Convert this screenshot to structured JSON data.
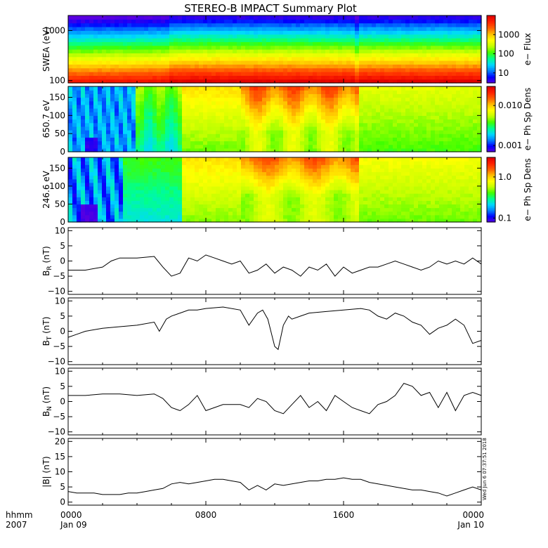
{
  "title": "STEREO-B IMPACT Summary Plot",
  "time_axis": {
    "unit_label": "hhmm",
    "year_label": "2007",
    "ticks": [
      {
        "hour": 0,
        "time": "0000",
        "date": "Jan 09"
      },
      {
        "hour": 8,
        "time": "0800",
        "date": ""
      },
      {
        "hour": 16,
        "time": "1600",
        "date": ""
      },
      {
        "hour": 24,
        "time": "0000",
        "date": "Jan 10"
      }
    ]
  },
  "stamp": "Wed Jun  6 07:37:51 2018",
  "colors": {
    "colormap": [
      "#5a00e0",
      "#0000ff",
      "#0080ff",
      "#00d8ff",
      "#00ff90",
      "#40ff00",
      "#c0ff00",
      "#ffff00",
      "#ffc000",
      "#ff6000",
      "#ff2000",
      "#e00000"
    ],
    "line": "#000000",
    "frame": "#000000"
  },
  "chart_data": [
    {
      "type": "heatmap",
      "name": "swea",
      "ylabel": "SWEA (eV)",
      "colorbar_label": "e− Flux",
      "yscale": "log",
      "ylim": [
        90,
        2000
      ],
      "yticks": [
        {
          "v": 100,
          "l": "100"
        },
        {
          "v": 1000,
          "l": "1000"
        }
      ],
      "colorbar_scale": "log",
      "colorbar_range": [
        3,
        10000
      ],
      "colorbar_ticks": [
        {
          "v": 10,
          "l": "10"
        },
        {
          "v": 100,
          "l": "100"
        },
        {
          "v": 1000,
          "l": "1000"
        }
      ]
    },
    {
      "type": "heatmap",
      "name": "pad650",
      "ylabel": "650.7 eV",
      "colorbar_label": "e− Ph Sp Dens",
      "yscale": "linear",
      "ylim": [
        0,
        180
      ],
      "yticks": [
        {
          "v": 0,
          "l": "0"
        },
        {
          "v": 50,
          "l": "50"
        },
        {
          "v": 100,
          "l": "100"
        },
        {
          "v": 150,
          "l": "150"
        }
      ],
      "colorbar_scale": "log",
      "colorbar_range": [
        0.0007,
        0.03
      ],
      "colorbar_ticks": [
        {
          "v": 0.001,
          "l": "0.001"
        },
        {
          "v": 0.01,
          "l": "0.010"
        }
      ]
    },
    {
      "type": "heatmap",
      "name": "pad246",
      "ylabel": "246.6 eV",
      "colorbar_label": "e− Ph Sp Dens",
      "yscale": "linear",
      "ylim": [
        0,
        180
      ],
      "yticks": [
        {
          "v": 0,
          "l": "0"
        },
        {
          "v": 50,
          "l": "50"
        },
        {
          "v": 100,
          "l": "100"
        },
        {
          "v": 150,
          "l": "150"
        }
      ],
      "colorbar_scale": "log",
      "colorbar_range": [
        0.08,
        3
      ],
      "colorbar_ticks": [
        {
          "v": 0.1,
          "l": "0.1"
        },
        {
          "v": 1,
          "l": "1.0"
        }
      ]
    },
    {
      "type": "line",
      "name": "br",
      "ylabel_main": "B",
      "ylabel_sub": "R",
      "ylabel_unit": " (nT)",
      "ylim": [
        -11,
        11
      ],
      "yticks": [
        {
          "v": -10,
          "l": "−10"
        },
        {
          "v": -5,
          "l": "−5"
        },
        {
          "v": 0,
          "l": "0"
        },
        {
          "v": 5,
          "l": "5"
        },
        {
          "v": 10,
          "l": "10"
        }
      ],
      "x": [
        0,
        1,
        2,
        2.5,
        3,
        4,
        5,
        5.5,
        6,
        6.5,
        7,
        7.5,
        8,
        8.5,
        9,
        9.5,
        10,
        10.5,
        11,
        11.5,
        12,
        12.5,
        13,
        13.5,
        14,
        14.5,
        15,
        15.5,
        16,
        16.5,
        17,
        17.5,
        18,
        18.5,
        19,
        19.5,
        20,
        20.5,
        21,
        21.5,
        22,
        22.5,
        23,
        23.5,
        24
      ],
      "y": [
        -3,
        -3,
        -2,
        0,
        1,
        1,
        1.5,
        -2,
        -5,
        -4,
        1,
        0,
        2,
        1,
        0,
        -1,
        0,
        -4,
        -3,
        -1,
        -4,
        -2,
        -3,
        -5,
        -2,
        -3,
        -1,
        -5,
        -2,
        -4,
        -3,
        -2,
        -2,
        -1,
        0,
        -1,
        -2,
        -3,
        -2,
        0,
        -1,
        0,
        -1,
        1,
        -1
      ]
    },
    {
      "type": "line",
      "name": "bt",
      "ylabel_main": "B",
      "ylabel_sub": "T",
      "ylabel_unit": " (nT)",
      "ylim": [
        -11,
        11
      ],
      "yticks": [
        {
          "v": -10,
          "l": "−10"
        },
        {
          "v": -5,
          "l": "−5"
        },
        {
          "v": 0,
          "l": "0"
        },
        {
          "v": 5,
          "l": "5"
        },
        {
          "v": 10,
          "l": "10"
        }
      ],
      "x": [
        0,
        0.5,
        1,
        2,
        3,
        4,
        5,
        5.3,
        5.7,
        6,
        6.5,
        7,
        7.5,
        8,
        9,
        10,
        10.5,
        11,
        11.3,
        11.6,
        12,
        12.2,
        12.5,
        12.8,
        13,
        13.5,
        14,
        15,
        16,
        17,
        17.5,
        18,
        18.5,
        19,
        19.5,
        20,
        20.5,
        21,
        21.5,
        22,
        22.5,
        23,
        23.5,
        24
      ],
      "y": [
        -2,
        -1,
        0,
        1,
        1.5,
        2,
        3,
        0,
        4,
        5,
        6,
        7,
        7,
        7.5,
        8,
        7,
        2,
        6,
        7,
        4,
        -5,
        -6,
        2,
        5,
        4,
        5,
        6,
        6.5,
        7,
        7.5,
        7,
        5,
        4,
        6,
        5,
        3,
        2,
        -1,
        1,
        2,
        4,
        2,
        -4,
        -3
      ]
    },
    {
      "type": "line",
      "name": "bn",
      "ylabel_main": "B",
      "ylabel_sub": "N",
      "ylabel_unit": " (nT)",
      "ylim": [
        -11,
        11
      ],
      "yticks": [
        {
          "v": -10,
          "l": "−10"
        },
        {
          "v": -5,
          "l": "−5"
        },
        {
          "v": 0,
          "l": "0"
        },
        {
          "v": 5,
          "l": "5"
        },
        {
          "v": 10,
          "l": "10"
        }
      ],
      "x": [
        0,
        1,
        2,
        3,
        4,
        5,
        5.5,
        6,
        6.5,
        7,
        7.5,
        8,
        8.5,
        9,
        9.5,
        10,
        10.5,
        11,
        11.5,
        12,
        12.5,
        13,
        13.5,
        14,
        14.5,
        15,
        15.5,
        16,
        16.5,
        17,
        17.5,
        18,
        18.5,
        19,
        19.5,
        20,
        20.5,
        21,
        21.5,
        22,
        22.5,
        23,
        23.5,
        24
      ],
      "y": [
        2,
        2,
        2.5,
        2.5,
        2,
        2.5,
        1,
        -2,
        -3,
        -1,
        2,
        -3,
        -2,
        -1,
        -1,
        -1,
        -2,
        1,
        0,
        -3,
        -4,
        -1,
        2,
        -2,
        0,
        -3,
        2,
        0,
        -2,
        -3,
        -4,
        -1,
        0,
        2,
        6,
        5,
        2,
        3,
        -2,
        3,
        -3,
        2,
        3,
        2
      ]
    },
    {
      "type": "line",
      "name": "bmag",
      "ylabel": "|B| (nT)",
      "ylim": [
        -1,
        21
      ],
      "yticks": [
        {
          "v": 0,
          "l": "0"
        },
        {
          "v": 5,
          "l": "5"
        },
        {
          "v": 10,
          "l": "10"
        },
        {
          "v": 15,
          "l": "15"
        },
        {
          "v": 20,
          "l": "20"
        }
      ],
      "x": [
        0,
        0.5,
        1,
        1.5,
        2,
        2.5,
        3,
        3.5,
        4,
        4.5,
        5,
        5.5,
        6,
        6.5,
        7,
        7.5,
        8,
        8.5,
        9,
        9.5,
        10,
        10.5,
        11,
        11.5,
        12,
        12.5,
        13,
        13.5,
        14,
        14.5,
        15,
        15.5,
        16,
        16.5,
        17,
        17.5,
        18,
        18.5,
        19,
        19.5,
        20,
        20.5,
        21,
        21.5,
        22,
        22.5,
        23,
        23.5,
        24
      ],
      "y": [
        3.5,
        3,
        3,
        3,
        2.5,
        2.5,
        2.5,
        3,
        3,
        3.5,
        4,
        4.5,
        6,
        6.5,
        6,
        6.5,
        7,
        7.5,
        7.5,
        7,
        6.5,
        4,
        5.5,
        4,
        6,
        5.5,
        6,
        6.5,
        7,
        7,
        7.5,
        7.5,
        8,
        7.5,
        7.5,
        6.5,
        6,
        5.5,
        5,
        4.5,
        4,
        4,
        3.5,
        3,
        2,
        3,
        4,
        5,
        4
      ]
    }
  ]
}
